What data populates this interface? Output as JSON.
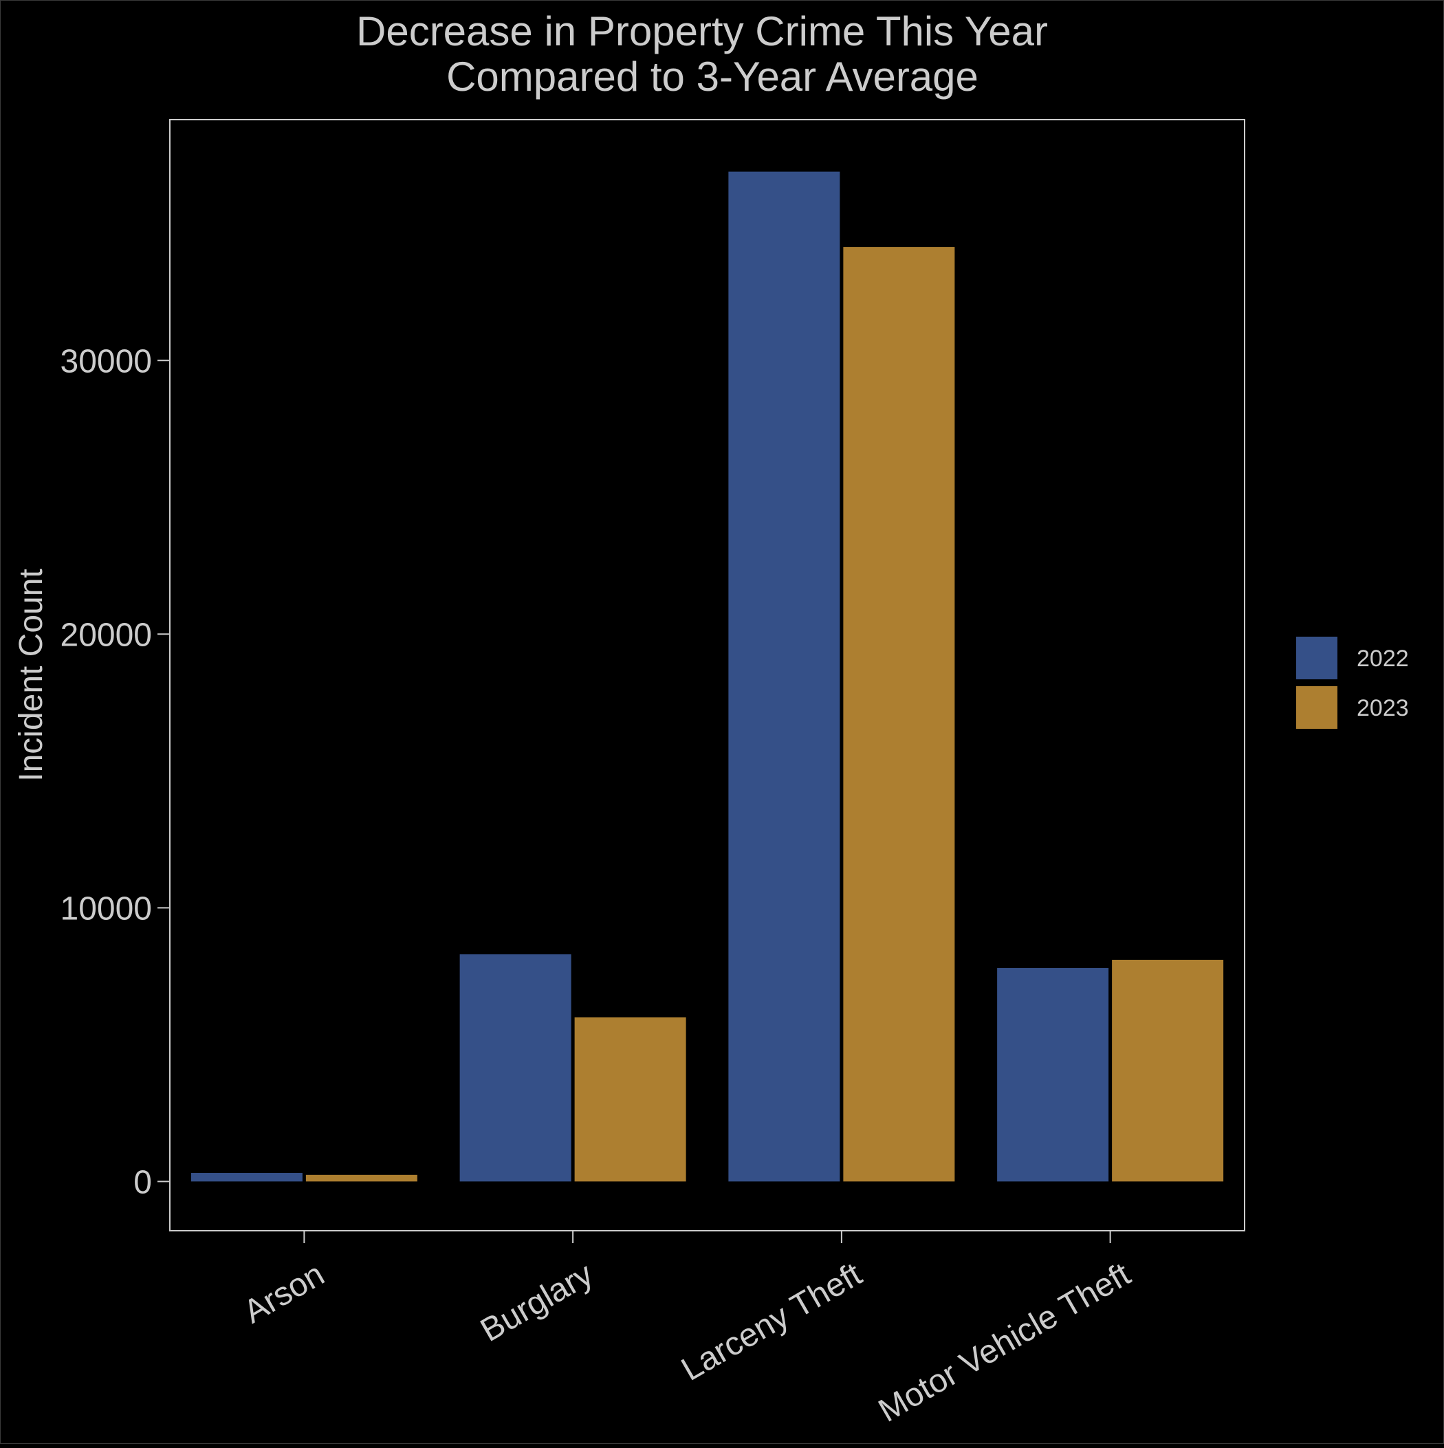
{
  "chart_data": {
    "type": "bar",
    "title_lines": [
      "Decrease in Property Crime This Year",
      "Compared to 3-Year Average"
    ],
    "xlabel": "",
    "ylabel": "Incident Count",
    "categories": [
      "Arson",
      "Burglary",
      "Larceny Theft",
      "Motor Vehicle Theft"
    ],
    "series": [
      {
        "name": "2022",
        "color": "#355088",
        "values": [
          310,
          8300,
          36900,
          7800
        ]
      },
      {
        "name": "2023",
        "color": "#ad7f30",
        "values": [
          240,
          6000,
          34150,
          8100
        ]
      }
    ],
    "ylim": [
      -1800,
      38800
    ],
    "yticks": [
      0,
      10000,
      20000,
      30000
    ],
    "grid": false,
    "legend_position": "right",
    "colors": {
      "background": "#000000",
      "text": "#cccccc",
      "axis": "#cccccc"
    }
  }
}
